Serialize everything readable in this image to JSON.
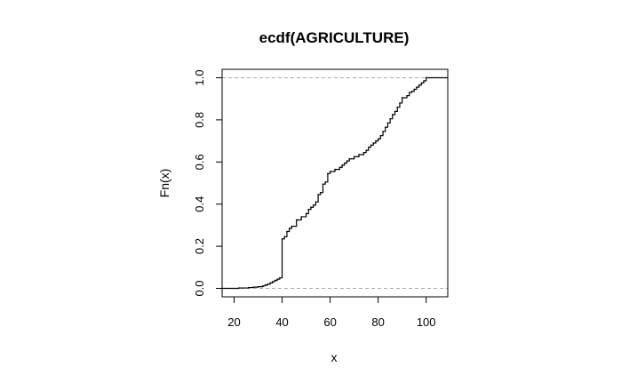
{
  "chart_data": {
    "type": "line",
    "step": true,
    "title": "ecdf(AGRICULTURE)",
    "xlabel": "x",
    "ylabel": "Fn(x)",
    "xlim": [
      15,
      109
    ],
    "ylim": [
      -0.04,
      1.04
    ],
    "xticks": [
      20,
      40,
      60,
      80,
      100
    ],
    "yticks": [
      0.0,
      0.2,
      0.4,
      0.6,
      0.8,
      1.0
    ],
    "ytick_labels": [
      "0.0",
      "0.2",
      "0.4",
      "0.6",
      "0.8",
      "1.0"
    ],
    "reference_lines": [
      0.0,
      1.0
    ],
    "reference_line_style": "dashed",
    "reference_line_color": "#aaaaaa",
    "line_color": "#000000",
    "grid": false,
    "series": [
      {
        "x": [
          22,
          26,
          28,
          30,
          32,
          33,
          34,
          35,
          36,
          37,
          38,
          39,
          40,
          41,
          42,
          43,
          44,
          46,
          48,
          50,
          51,
          52,
          53,
          54,
          55,
          56,
          57,
          58,
          59,
          60,
          62,
          64,
          65,
          66,
          67,
          68,
          70,
          72,
          74,
          75,
          76,
          77,
          78,
          79,
          80,
          81,
          82,
          83,
          84,
          85,
          86,
          87,
          88,
          89,
          90,
          92,
          93,
          94,
          95,
          96,
          97,
          98,
          99,
          100
        ],
        "y": [
          0.002,
          0.004,
          0.006,
          0.008,
          0.012,
          0.016,
          0.02,
          0.026,
          0.032,
          0.038,
          0.044,
          0.05,
          0.235,
          0.245,
          0.27,
          0.285,
          0.295,
          0.325,
          0.34,
          0.355,
          0.375,
          0.385,
          0.395,
          0.41,
          0.445,
          0.455,
          0.495,
          0.505,
          0.545,
          0.555,
          0.565,
          0.575,
          0.585,
          0.595,
          0.605,
          0.615,
          0.625,
          0.635,
          0.645,
          0.655,
          0.67,
          0.68,
          0.69,
          0.7,
          0.71,
          0.725,
          0.745,
          0.765,
          0.785,
          0.805,
          0.825,
          0.84,
          0.86,
          0.88,
          0.905,
          0.915,
          0.93,
          0.935,
          0.945,
          0.955,
          0.965,
          0.975,
          0.985,
          1.0
        ]
      }
    ]
  }
}
